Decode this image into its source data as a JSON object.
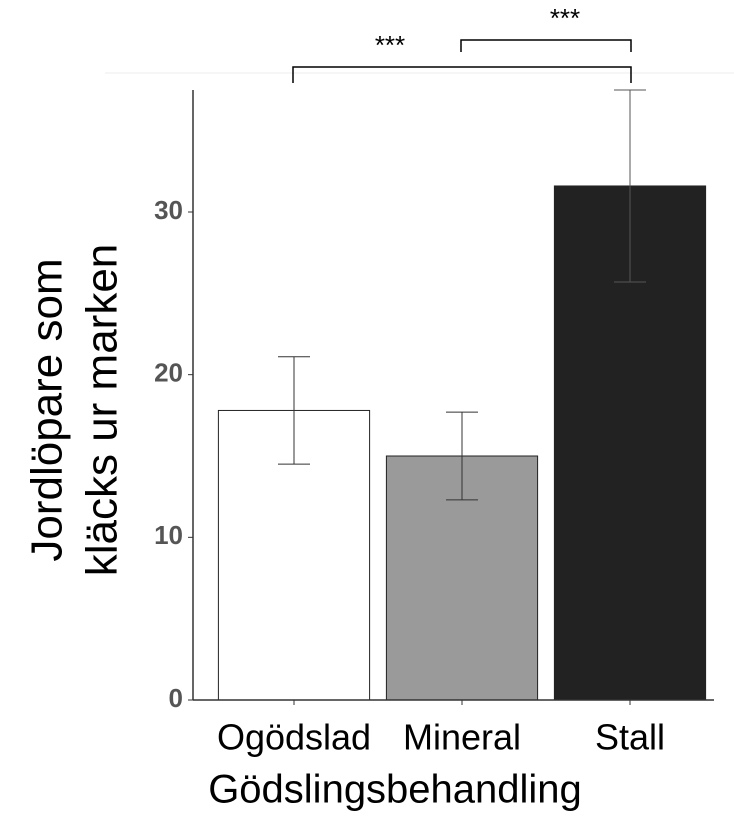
{
  "chart_data": {
    "type": "bar",
    "xlabel": "Gödslingsbehandling",
    "ylabel": [
      "Jordlöpare som",
      "kläcks ur marken"
    ],
    "categories": [
      "Ogödslad",
      "Mineral",
      "Stall"
    ],
    "values": [
      17.8,
      15.0,
      31.6
    ],
    "errors": [
      3.3,
      2.7,
      5.9
    ],
    "colors": [
      "#ffffff",
      "#9a9a9a",
      "#222222"
    ],
    "ylim": [
      0,
      37.5
    ],
    "yticks": [
      0,
      10,
      20,
      30
    ],
    "annotations": [
      "***",
      "***"
    ]
  }
}
